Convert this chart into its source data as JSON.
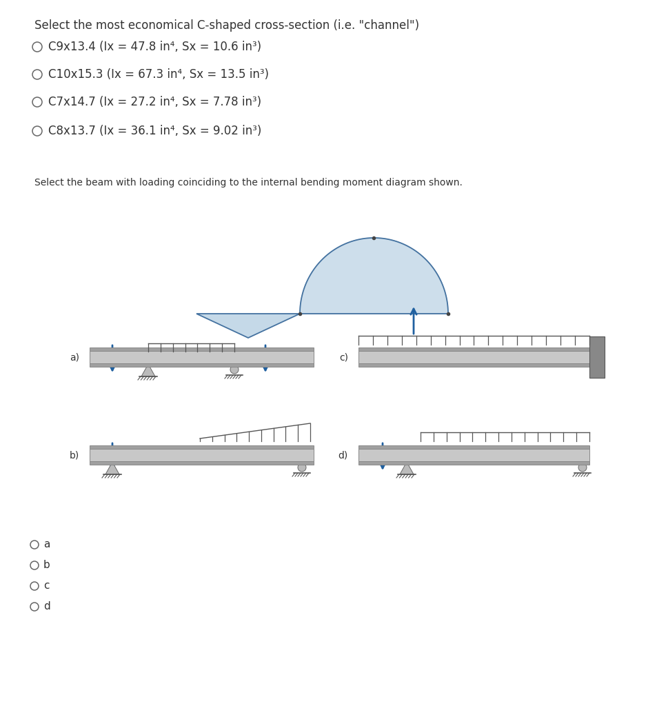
{
  "title1": "Select the most economical C-shaped cross-section (i.e. \"channel\")",
  "options": [
    "C9x13.4 (Ix = 47.8 in⁴, Sx = 10.6 in³)",
    "C10x15.3 (Ix = 67.3 in⁴, Sx = 13.5 in³)",
    "C7x14.7 (Ix = 27.2 in⁴, Sx = 7.78 in³)",
    "C8x13.7 (Ix = 36.1 in⁴, Sx = 9.02 in³)"
  ],
  "title2": "Select the beam with loading coinciding to the internal bending moment diagram shown.",
  "radio_labels2": [
    "a",
    "b",
    "c",
    "d"
  ],
  "beam_color_light": "#c8c8c8",
  "beam_color_dark": "#a0a0a0",
  "arrow_color": "#2060a0",
  "bg_color": "#ffffff",
  "text_color": "#333333",
  "diagram_fill": "#c5d9e8",
  "diagram_line": "#4472a0"
}
